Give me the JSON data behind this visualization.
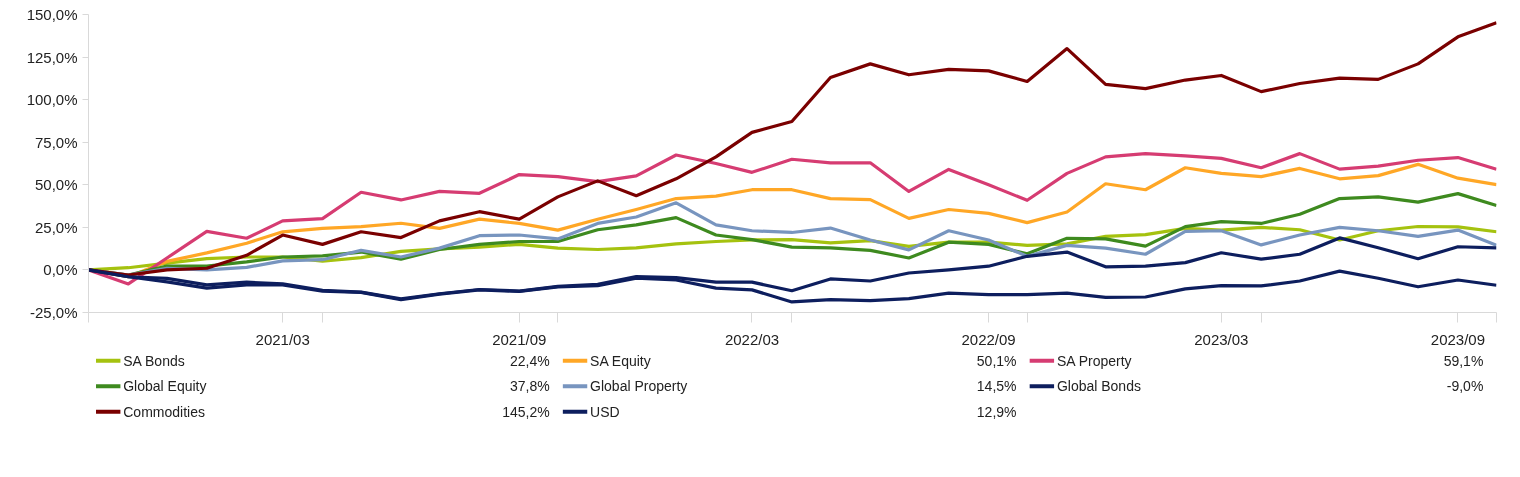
{
  "chart_data": {
    "type": "line",
    "x": [
      "2020-10",
      "2020-11",
      "2020-12",
      "2021-01",
      "2021-02",
      "2021-03",
      "2021-04",
      "2021-05",
      "2021-06",
      "2021-07",
      "2021-08",
      "2021-09",
      "2021-10",
      "2021-11",
      "2021-12",
      "2022-01",
      "2022-02",
      "2022-03",
      "2022-04",
      "2022-05",
      "2022-06",
      "2022-07",
      "2022-08",
      "2022-09",
      "2022-10",
      "2022-11",
      "2022-12",
      "2023-01",
      "2023-02",
      "2023-03",
      "2023-04",
      "2023-05",
      "2023-06",
      "2023-07",
      "2023-08",
      "2023-09",
      "2023-10"
    ],
    "xlim": [
      "2020-10",
      "2023-10"
    ],
    "xticks": [
      {
        "value": "2020-10",
        "label": null
      },
      {
        "value": "2021-03",
        "label": "2021/03"
      },
      {
        "value": "2021-04",
        "label": null
      },
      {
        "value": "2021-09",
        "label": "2021/09"
      },
      {
        "value": "2021-10",
        "label": null
      },
      {
        "value": "2022-03",
        "label": "2022/03"
      },
      {
        "value": "2022-04",
        "label": null
      },
      {
        "value": "2022-09",
        "label": "2022/09"
      },
      {
        "value": "2022-10",
        "label": null
      },
      {
        "value": "2023-03",
        "label": "2023/03"
      },
      {
        "value": "2023-04",
        "label": null
      },
      {
        "value": "2023-09",
        "label": "2023/09"
      },
      {
        "value": "2023-10",
        "label": null
      }
    ],
    "ylim": [
      -25,
      150
    ],
    "yticks": [
      {
        "value": -25,
        "label": "-25,0%"
      },
      {
        "value": 0,
        "label": "0,0%"
      },
      {
        "value": 25,
        "label": "25,0%"
      },
      {
        "value": 50,
        "label": "50,0%"
      },
      {
        "value": 75,
        "label": "75,0%"
      },
      {
        "value": 100,
        "label": "100,0%"
      },
      {
        "value": 125,
        "label": "125,0%"
      },
      {
        "value": 150,
        "label": "150,0%"
      }
    ],
    "grid": false,
    "legend": "bottom",
    "marker": "none",
    "line_style": "solid",
    "series": [
      {
        "name": "SA Bonds",
        "color": "#a5c20f",
        "values": [
          0,
          1.3,
          4,
          6.6,
          7.6,
          7.6,
          5.1,
          7.2,
          10.9,
          12.4,
          13.4,
          15,
          12.8,
          12,
          13,
          15.3,
          16.7,
          17.6,
          17.8,
          15.9,
          17.2,
          13.8,
          16.3,
          16.3,
          14.4,
          15.3,
          19.7,
          20.7,
          24.4,
          23.4,
          25,
          23.6,
          17.6,
          23,
          25.5,
          25.3,
          22.4
        ]
      },
      {
        "name": "SA Equity",
        "color": "#ffa726",
        "values": [
          0,
          -4,
          5,
          10,
          15.7,
          22.4,
          24.4,
          25.4,
          27.4,
          24.4,
          29.8,
          27.3,
          23.4,
          29.8,
          35.5,
          41.9,
          43.3,
          47.1,
          47.1,
          41.9,
          41.3,
          30.3,
          35.5,
          33.2,
          27.8,
          34,
          50.6,
          47.1,
          60,
          56.7,
          54.8,
          59.6,
          53.5,
          55.4,
          62,
          53.9,
          50.1
        ]
      },
      {
        "name": "SA Property",
        "color": "#d63c72",
        "values": [
          0,
          -8.2,
          7,
          22.6,
          18.6,
          28.8,
          30.1,
          45.6,
          41.1,
          46.1,
          45,
          56,
          54.8,
          51.9,
          55.2,
          67.5,
          62.5,
          57.3,
          65,
          62.9,
          62.9,
          46.1,
          59,
          50,
          40.9,
          56.7,
          66.4,
          68.3,
          67,
          65.5,
          60,
          68.3,
          59.2,
          61,
          64.4,
          66,
          59.1
        ]
      },
      {
        "name": "Global Equity",
        "color": "#3e8a1f",
        "values": [
          0,
          -3,
          2.2,
          2.2,
          4.7,
          7.6,
          8.2,
          10.5,
          6.3,
          12,
          15,
          16.7,
          16.7,
          23.6,
          26.5,
          30.7,
          20.5,
          17.8,
          13.4,
          13,
          11.5,
          7,
          16.3,
          15,
          9.5,
          18.6,
          18.2,
          14,
          25.4,
          28.4,
          27.3,
          32.7,
          41.9,
          42.9,
          39.8,
          44.8,
          37.8
        ]
      },
      {
        "name": "Global Property",
        "color": "#7895bf",
        "values": [
          0,
          -3,
          0.9,
          0,
          1.5,
          5.3,
          6,
          11.5,
          7.6,
          12.8,
          20.1,
          20.5,
          18.2,
          27.3,
          31.1,
          39.4,
          26.5,
          23,
          22,
          24.6,
          17.6,
          11.8,
          23,
          17.6,
          8,
          14.4,
          12.8,
          9.2,
          22.6,
          23,
          14.7,
          20.5,
          25,
          23,
          19.7,
          23.4,
          14.5
        ]
      },
      {
        "name": "Global Bonds",
        "color": "#0d1e5e",
        "values": [
          0,
          -4,
          -7,
          -10.7,
          -8.8,
          -8.8,
          -12.5,
          -13.2,
          -17.4,
          -14.2,
          -11.7,
          -12.6,
          -9.9,
          -9.2,
          -4.9,
          -5.9,
          -10.7,
          -11.7,
          -18.8,
          -17.4,
          -18,
          -16.9,
          -13.6,
          -14.5,
          -14.5,
          -13.6,
          -16.1,
          -15.9,
          -11.1,
          -9.2,
          -9.4,
          -6.5,
          -0.7,
          -4.9,
          -9.9,
          -5.9,
          -9.0
        ]
      },
      {
        "name": "Commodities",
        "color": "#7a0000",
        "values": [
          0,
          -3,
          0,
          1,
          8.6,
          20.5,
          15,
          22.4,
          19,
          28.8,
          34.2,
          29.8,
          42.9,
          52.3,
          43.6,
          53.5,
          66.4,
          80.8,
          87.2,
          113,
          121,
          114.6,
          117.8,
          116.9,
          110.7,
          130,
          109,
          106.5,
          111.5,
          114.2,
          104.7,
          109.5,
          112.6,
          111.9,
          121,
          136.9,
          145.2
        ]
      },
      {
        "name": "USD",
        "color": "#0d1e5e",
        "values": [
          0,
          -4,
          -5,
          -8.8,
          -7.2,
          -8.2,
          -12,
          -13,
          -17,
          -14,
          -11.5,
          -12.4,
          -9.7,
          -8.4,
          -3.9,
          -4.5,
          -7.2,
          -7.2,
          -12.2,
          -5.3,
          -6.5,
          -1.8,
          0,
          2.2,
          8,
          10.5,
          1.8,
          2.2,
          4.3,
          10.1,
          6.3,
          9.2,
          18.8,
          13,
          6.6,
          13.6,
          12.9
        ]
      }
    ],
    "annotations": [
      "22,4%",
      "50,1%",
      "59,1%",
      "37,8%",
      "14,5%",
      "-9,0%",
      "145,2%",
      "12,9%"
    ]
  }
}
